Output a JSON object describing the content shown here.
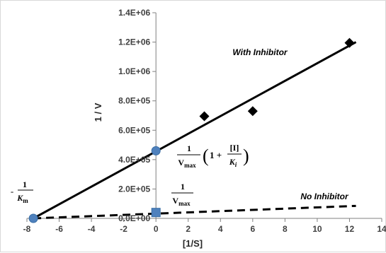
{
  "chart_data": {
    "type": "scatter",
    "title": "",
    "xlabel": "[1/S]",
    "ylabel": "1 / V",
    "xlim": [
      -8,
      14
    ],
    "ylim": [
      0,
      1400000
    ],
    "x_ticks": [
      -8,
      -6,
      -4,
      -2,
      0,
      2,
      4,
      6,
      8,
      10,
      12,
      14
    ],
    "y_ticks": [
      0,
      200000,
      400000,
      600000,
      800000,
      1000000,
      1200000,
      1400000
    ],
    "x_tick_labels": [
      "-8",
      "-6",
      "-4",
      "-2",
      "0",
      "2",
      "4",
      "6",
      "8",
      "10",
      "12",
      "14"
    ],
    "y_tick_labels": [
      "0.0E+00",
      "2.0E+05",
      "4.0E+05",
      "6.0E+05",
      "8.0E+05",
      "1.0E+06",
      "1.2E+06",
      "1.4E+06"
    ],
    "grid": false,
    "series": [
      {
        "name": "With Inhibitor",
        "style": "solid",
        "color": "#000000",
        "marker": "diamond",
        "points": [
          {
            "x": 3,
            "y": 695000
          },
          {
            "x": 6,
            "y": 730000
          },
          {
            "x": 12,
            "y": 1195000
          }
        ],
        "line": [
          {
            "x": -7.6,
            "y": 0
          },
          {
            "x": 12.4,
            "y": 1200000
          }
        ]
      },
      {
        "name": "No Inhibitor",
        "style": "dashed",
        "color": "#000000",
        "line": [
          {
            "x": -7.6,
            "y": 0
          },
          {
            "x": 12.4,
            "y": 85000
          }
        ]
      }
    ],
    "annotations": [
      {
        "label": "-1/K_m",
        "x": -7.6,
        "y": 0,
        "marker": "circle",
        "color": "#4f81bd"
      },
      {
        "label": "(1/V_max)(1 + [I]/K_i)",
        "x": 0,
        "y": 460000,
        "marker": "circle",
        "color": "#4f81bd"
      },
      {
        "label": "1/V_max",
        "x": 0,
        "y": 40000,
        "marker": "square",
        "color": "#4f81bd"
      }
    ]
  },
  "labels": {
    "with_inhibitor": "With Inhibitor",
    "no_inhibitor": "No Inhibitor",
    "km_num": "1",
    "km_den": "K",
    "km_sub": "m",
    "km_sign": "-",
    "vmax_num": "1",
    "vmax_den": "V",
    "vmax_sub": "max",
    "big_num": "1",
    "big_den": "V",
    "big_sub": "max",
    "paren_open": "(",
    "one_plus": "1 +",
    "frac_i_num": "[I]",
    "frac_i_den": "K",
    "frac_i_sub": "i",
    "paren_close": ")"
  }
}
